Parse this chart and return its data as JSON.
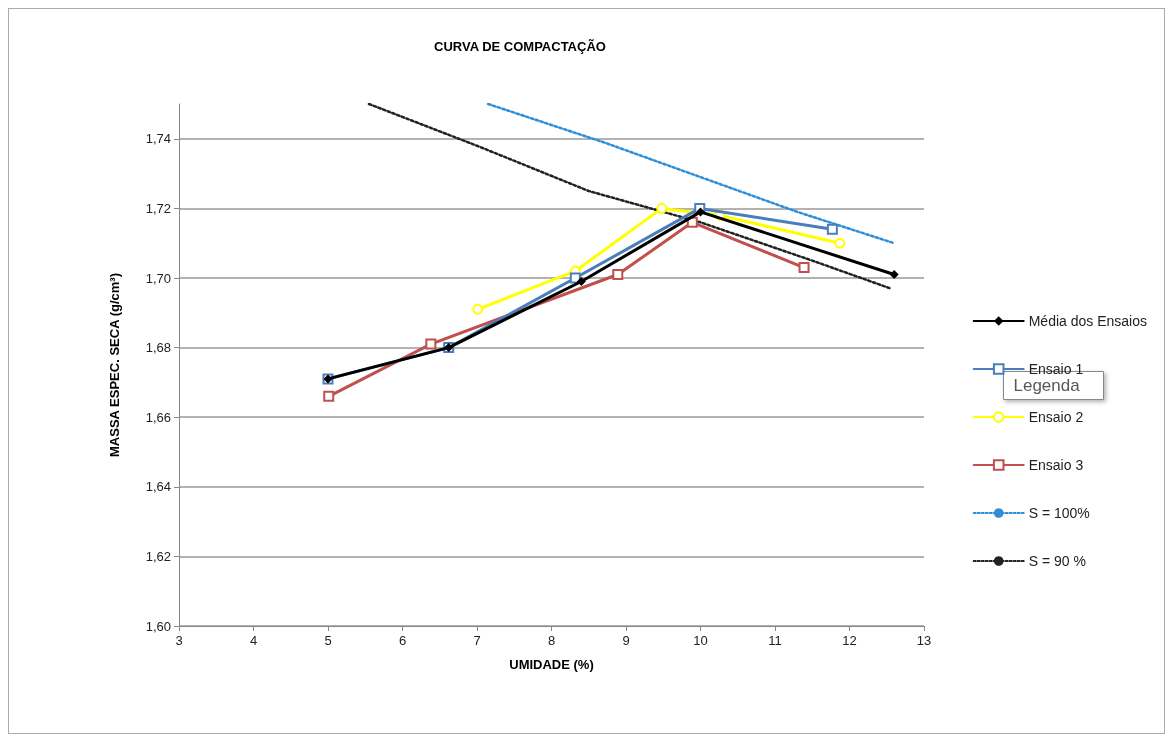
{
  "chart_data": {
    "type": "line",
    "title": "CURVA DE COMPACTAÇÃO",
    "xlabel": "UMIDADE (%)",
    "ylabel": "MASSA ESPEC. SECA (g/cm³)",
    "xlim": [
      3,
      13
    ],
    "xticks": [
      3,
      4,
      5,
      6,
      7,
      8,
      9,
      10,
      11,
      12,
      13
    ],
    "ylim": [
      1.6,
      1.75
    ],
    "yticks": [
      {
        "value": 1.6,
        "label": "1,60"
      },
      {
        "value": 1.62,
        "label": "1,62"
      },
      {
        "value": 1.64,
        "label": "1,64"
      },
      {
        "value": 1.66,
        "label": "1,66"
      },
      {
        "value": 1.68,
        "label": "1,68"
      },
      {
        "value": 1.7,
        "label": "1,70"
      },
      {
        "value": 1.72,
        "label": "1,72"
      },
      {
        "value": 1.74,
        "label": "1,74"
      }
    ],
    "grid": "y",
    "legend": "right",
    "annotations": [
      "Legenda"
    ],
    "series": [
      {
        "name": "Média dos Ensaios",
        "color": "#000000",
        "marker": "diamond",
        "line_style": "solid",
        "x": [
          5.0,
          6.62,
          8.4,
          10.0,
          12.6
        ],
        "values": [
          1.671,
          1.68,
          1.699,
          1.719,
          1.701
        ]
      },
      {
        "name": "Ensaio 1",
        "color": "#4a7ebb",
        "marker": "square",
        "line_style": "solid",
        "x": [
          5.0,
          6.62,
          8.32,
          9.99,
          11.77
        ],
        "values": [
          1.671,
          1.68,
          1.7,
          1.72,
          1.714
        ]
      },
      {
        "name": "Ensaio 2",
        "color": "#ffff00",
        "marker": "circle",
        "line_style": "solid",
        "x": [
          7.01,
          8.32,
          9.48,
          10.26,
          11.87
        ],
        "values": [
          1.691,
          1.702,
          1.72,
          1.718,
          1.71
        ]
      },
      {
        "name": "Ensaio 3",
        "color": "#c0504d",
        "marker": "square",
        "line_style": "solid",
        "x": [
          5.01,
          6.38,
          8.89,
          9.89,
          11.39
        ],
        "values": [
          1.666,
          1.681,
          1.701,
          1.716,
          1.703
        ]
      },
      {
        "name": "S = 100%",
        "color": "#2e8fd8",
        "marker": "none",
        "line_style": "dotted",
        "x": [
          7.15,
          8.7,
          10.0,
          11.3,
          12.6
        ],
        "values": [
          1.75,
          1.739,
          1.729,
          1.719,
          1.71
        ]
      },
      {
        "name": "S = 90 %",
        "color": "#222222",
        "marker": "none",
        "line_style": "dotted",
        "x": [
          5.55,
          7.0,
          8.5,
          10.0,
          11.5,
          12.55
        ],
        "values": [
          1.75,
          1.738,
          1.725,
          1.716,
          1.705,
          1.697
        ]
      }
    ]
  }
}
